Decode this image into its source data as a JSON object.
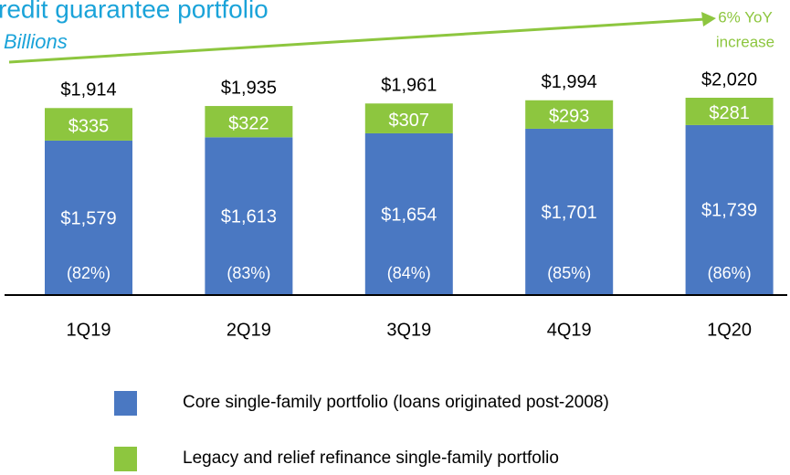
{
  "chart_data": {
    "type": "stacked_bar",
    "title": "redit guarantee portfolio",
    "subtitle": "Billions",
    "annotation": [
      "6% YoY",
      "increase"
    ],
    "categories": [
      "1Q19",
      "2Q19",
      "3Q19",
      "4Q19",
      "1Q20"
    ],
    "series": [
      {
        "name": "Core single-family portfolio (loans originated post-2008)",
        "color": "#4a78c2",
        "values": [
          1579,
          1613,
          1654,
          1701,
          1739
        ],
        "value_labels": [
          "$1,579",
          "$1,613",
          "$1,654",
          "$1,701",
          "$1,739"
        ]
      },
      {
        "name": "Legacy and relief refinance single-family portfolio",
        "color": "#8dc63f",
        "values": [
          335,
          322,
          307,
          293,
          281
        ],
        "value_labels": [
          "$335",
          "$322",
          "$307",
          "$293",
          "$281"
        ]
      }
    ],
    "totals": [
      1914,
      1935,
      1961,
      1994,
      2020
    ],
    "total_labels": [
      "$1,914",
      "$1,935",
      "$1,961",
      "$1,994",
      "$2,020"
    ],
    "shares": [
      82,
      83,
      84,
      85,
      86
    ],
    "share_labels": [
      "(82%)",
      "(83%)",
      "(84%)",
      "(85%)",
      "(86%)"
    ]
  }
}
